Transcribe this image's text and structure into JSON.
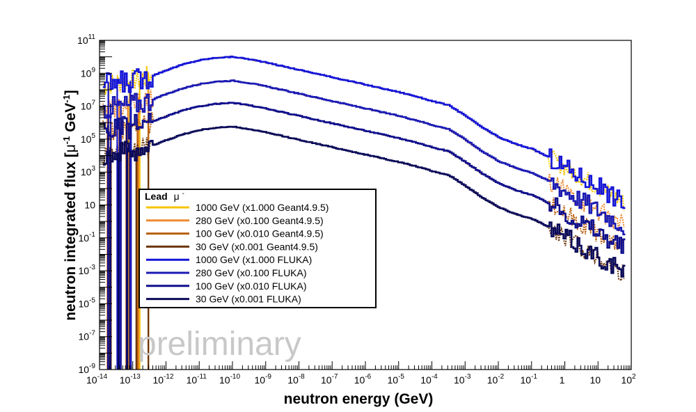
{
  "chart_data": {
    "type": "line",
    "title": "",
    "xlabel": "neutron energy (GeV)",
    "ylabel_parts": {
      "main": "neutron integrated flux [",
      "mu": "μ",
      "exp1": "-1",
      "gev": " GeV",
      "exp2": "-1",
      "close": "]"
    },
    "xscale": "log",
    "yscale": "log",
    "xlim_exp": [
      -14,
      2
    ],
    "ylim_exp": [
      -9,
      11
    ],
    "x_ticks": [
      {
        "exp": -14,
        "label": "10",
        "sup": "-14"
      },
      {
        "exp": -13,
        "label": "10",
        "sup": "-13"
      },
      {
        "exp": -12,
        "label": "10",
        "sup": "-12"
      },
      {
        "exp": -11,
        "label": "10",
        "sup": "-11"
      },
      {
        "exp": -10,
        "label": "10",
        "sup": "-10"
      },
      {
        "exp": -9,
        "label": "10",
        "sup": "-9"
      },
      {
        "exp": -8,
        "label": "10",
        "sup": "-8"
      },
      {
        "exp": -7,
        "label": "10",
        "sup": "-7"
      },
      {
        "exp": -6,
        "label": "10",
        "sup": "-6"
      },
      {
        "exp": -5,
        "label": "10",
        "sup": "-5"
      },
      {
        "exp": -4,
        "label": "10",
        "sup": "-4"
      },
      {
        "exp": -3,
        "label": "10",
        "sup": "-3"
      },
      {
        "exp": -2,
        "label": "10",
        "sup": "-2"
      },
      {
        "exp": -1,
        "label": "10",
        "sup": "-1"
      },
      {
        "exp": 0,
        "label": "1",
        "sup": ""
      },
      {
        "exp": 1,
        "label": "10",
        "sup": ""
      },
      {
        "exp": 2,
        "label": "10",
        "sup": "2"
      }
    ],
    "y_ticks": [
      {
        "exp": -9,
        "label": "10",
        "sup": "-9"
      },
      {
        "exp": -7,
        "label": "10",
        "sup": "-7"
      },
      {
        "exp": -5,
        "label": "10",
        "sup": "-5"
      },
      {
        "exp": -3,
        "label": "10",
        "sup": "-3"
      },
      {
        "exp": -1,
        "label": "10",
        "sup": "-1"
      },
      {
        "exp": 1,
        "label": "10",
        "sup": ""
      },
      {
        "exp": 3,
        "label": "10",
        "sup": "3"
      },
      {
        "exp": 5,
        "label": "10",
        "sup": "5"
      },
      {
        "exp": 7,
        "label": "10",
        "sup": "7"
      },
      {
        "exp": 9,
        "label": "10",
        "sup": "9"
      },
      {
        "exp": 11,
        "label": "10",
        "sup": "11"
      }
    ],
    "legend": {
      "title": "Lead",
      "title_symbol": "μ",
      "title_sup": "-",
      "placement": "center-left"
    },
    "shape": {
      "log_x": [
        -14,
        -13.5,
        -13,
        -12.5,
        -12,
        -11.5,
        -11,
        -10.5,
        -10,
        -9.5,
        -9,
        -8,
        -7,
        -6,
        -5,
        -4.5,
        -4,
        -3.5,
        -3,
        -2.5,
        -2,
        -1.5,
        -1,
        -0.5,
        0,
        0.5,
        1,
        1.5,
        1.8
      ],
      "log_y_rel": [
        -0.7,
        -0.6,
        -0.45,
        -0.2,
        0.2,
        0.55,
        0.8,
        0.95,
        1.0,
        0.85,
        0.65,
        0.2,
        -0.25,
        -0.7,
        -1.15,
        -1.4,
        -1.7,
        -1.95,
        -2.6,
        -3.3,
        -3.9,
        -4.3,
        -4.6,
        -5.1,
        -5.7,
        -6.3,
        -6.9,
        -7.5,
        -7.9
      ]
    },
    "series": [
      {
        "name": "1000 GeV (x1.000 Geant4.9.5)",
        "color": "#f5c400",
        "style": "dotted",
        "offset_exp": 9.0
      },
      {
        "name": "280 GeV (x0.100 Geant4.9.5)",
        "color": "#ee8a30",
        "style": "dotted",
        "offset_exp": 7.55
      },
      {
        "name": "100 GeV (x0.010 Geant4.9.5)",
        "color": "#b8600e",
        "style": "dotted",
        "offset_exp": 6.2
      },
      {
        "name": "30 GeV (x0.001 Geant4.9.5)",
        "color": "#6b3508",
        "style": "dotted",
        "offset_exp": 4.75
      },
      {
        "name": "1000 GeV (x1.000 FLUKA)",
        "color": "#1515d8",
        "style": "step",
        "offset_exp": 9.0
      },
      {
        "name": "280 GeV (x0.100 FLUKA)",
        "color": "#1a1ab4",
        "style": "step",
        "offset_exp": 7.55
      },
      {
        "name": "100 GeV (x0.010 FLUKA)",
        "color": "#0e0e8c",
        "style": "step",
        "offset_exp": 6.2
      },
      {
        "name": "30 GeV (x0.001 FLUKA)",
        "color": "#0a0a5a",
        "style": "step",
        "offset_exp": 4.75
      }
    ]
  },
  "watermark": "preliminary"
}
